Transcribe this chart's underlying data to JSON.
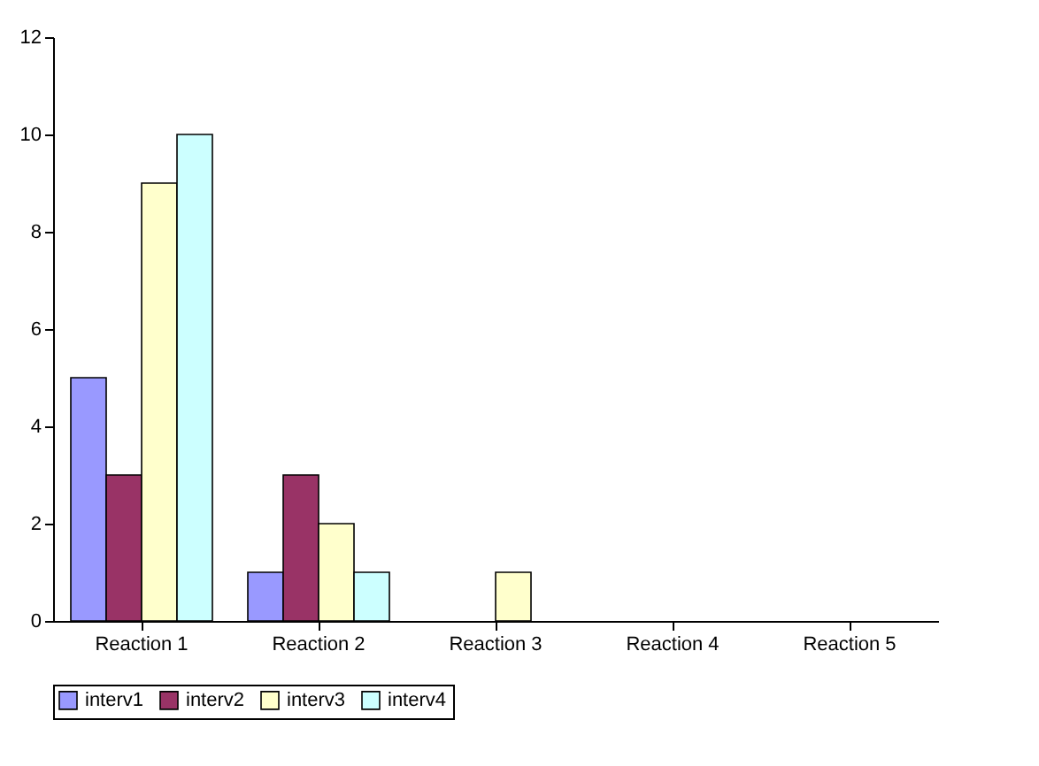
{
  "chart_data": {
    "type": "bar",
    "categories": [
      "Reaction 1",
      "Reaction 2",
      "Reaction 3",
      "Reaction 4",
      "Reaction 5"
    ],
    "series": [
      {
        "name": "interv1",
        "color": "#9999ff",
        "values": [
          5,
          1,
          0,
          0,
          0
        ]
      },
      {
        "name": "interv2",
        "color": "#993366",
        "values": [
          3,
          3,
          0,
          0,
          0
        ]
      },
      {
        "name": "interv3",
        "color": "#ffffcc",
        "values": [
          9,
          2,
          1,
          0,
          0
        ]
      },
      {
        "name": "interv4",
        "color": "#ccffff",
        "values": [
          10,
          1,
          0,
          0,
          0
        ]
      }
    ],
    "ylim": [
      0,
      12
    ],
    "yticks": [
      0,
      2,
      4,
      6,
      8,
      10,
      12
    ],
    "grid": false,
    "legend": "bottom"
  }
}
